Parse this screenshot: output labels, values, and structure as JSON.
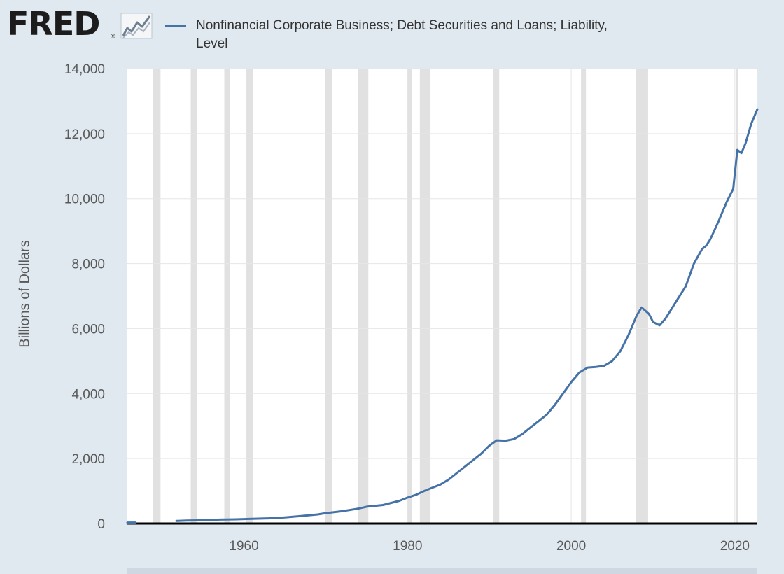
{
  "header": {
    "logo_text": "FRED",
    "logo_reg": "®",
    "logo_icon": "chart-trend-icon"
  },
  "colors": {
    "background": "#e1e9f0",
    "plot_background": "#ffffff",
    "series": "#4572a7",
    "recession": "#e1e1e1",
    "gridline": "#e6e6e6"
  },
  "chart_data": {
    "type": "line",
    "title": "",
    "ylabel": "Billions of Dollars",
    "xlabel": "",
    "ylim": [
      0,
      14000
    ],
    "xlim": [
      1945.75,
      2022.75
    ],
    "y_ticks": [
      "0",
      "2,000",
      "4,000",
      "6,000",
      "8,000",
      "10,000",
      "12,000",
      "14,000"
    ],
    "y_tick_values": [
      0,
      2000,
      4000,
      6000,
      8000,
      10000,
      12000,
      14000
    ],
    "x_ticks": [
      "1960",
      "1980",
      "2000",
      "2020"
    ],
    "x_tick_values": [
      1960,
      1980,
      2000,
      2020
    ],
    "grid": true,
    "legend_position": "top",
    "recessions": [
      [
        1948.9,
        1949.8
      ],
      [
        1953.5,
        1954.3
      ],
      [
        1957.6,
        1958.3
      ],
      [
        1960.3,
        1961.1
      ],
      [
        1969.9,
        1970.8
      ],
      [
        1973.9,
        1975.2
      ],
      [
        1980.0,
        1980.5
      ],
      [
        1981.5,
        1982.8
      ],
      [
        1990.5,
        1991.2
      ],
      [
        2001.2,
        2001.8
      ],
      [
        2007.9,
        2009.4
      ],
      [
        2020.1,
        2020.3
      ]
    ],
    "series": [
      {
        "name": "Nonfinancial Corporate Business; Debt Securities and Loans; Liability, Level",
        "segments": [
          [
            [
              1945.75,
              30
            ],
            [
              1946.75,
              30
            ]
          ],
          [
            [
              1951.75,
              80
            ],
            [
              1953,
              90
            ],
            [
              1955,
              100
            ],
            [
              1957,
              120
            ],
            [
              1959,
              130
            ],
            [
              1961,
              145
            ],
            [
              1963,
              160
            ],
            [
              1965,
              190
            ],
            [
              1967,
              230
            ],
            [
              1969,
              280
            ],
            [
              1970,
              320
            ],
            [
              1972,
              380
            ],
            [
              1974,
              460
            ],
            [
              1975,
              520
            ],
            [
              1977,
              570
            ],
            [
              1979,
              700
            ],
            [
              1980,
              800
            ],
            [
              1981,
              880
            ],
            [
              1982,
              1000
            ],
            [
              1983,
              1100
            ],
            [
              1984,
              1200
            ],
            [
              1985,
              1350
            ],
            [
              1986,
              1550
            ],
            [
              1987,
              1750
            ],
            [
              1988,
              1950
            ],
            [
              1989,
              2150
            ],
            [
              1990,
              2400
            ],
            [
              1990.9,
              2560
            ],
            [
              1992,
              2550
            ],
            [
              1993,
              2600
            ],
            [
              1994,
              2750
            ],
            [
              1995,
              2950
            ],
            [
              1996,
              3150
            ],
            [
              1997,
              3350
            ],
            [
              1998,
              3650
            ],
            [
              1999,
              4000
            ],
            [
              2000,
              4350
            ],
            [
              2001,
              4650
            ],
            [
              2002,
              4800
            ],
            [
              2003,
              4820
            ],
            [
              2004,
              4850
            ],
            [
              2005,
              5000
            ],
            [
              2006,
              5300
            ],
            [
              2007,
              5800
            ],
            [
              2008,
              6400
            ],
            [
              2008.6,
              6650
            ],
            [
              2009.5,
              6450
            ],
            [
              2010,
              6200
            ],
            [
              2010.8,
              6100
            ],
            [
              2011.5,
              6300
            ],
            [
              2012,
              6500
            ],
            [
              2013,
              6900
            ],
            [
              2014,
              7300
            ],
            [
              2015,
              8000
            ],
            [
              2016,
              8450
            ],
            [
              2016.5,
              8550
            ],
            [
              2017,
              8750
            ],
            [
              2018,
              9300
            ],
            [
              2018.5,
              9600
            ],
            [
              2019,
              9900
            ],
            [
              2019.8,
              10300
            ],
            [
              2020.3,
              11500
            ],
            [
              2020.8,
              11400
            ],
            [
              2021.3,
              11700
            ],
            [
              2022,
              12300
            ],
            [
              2022.75,
              12750
            ]
          ]
        ]
      }
    ]
  }
}
